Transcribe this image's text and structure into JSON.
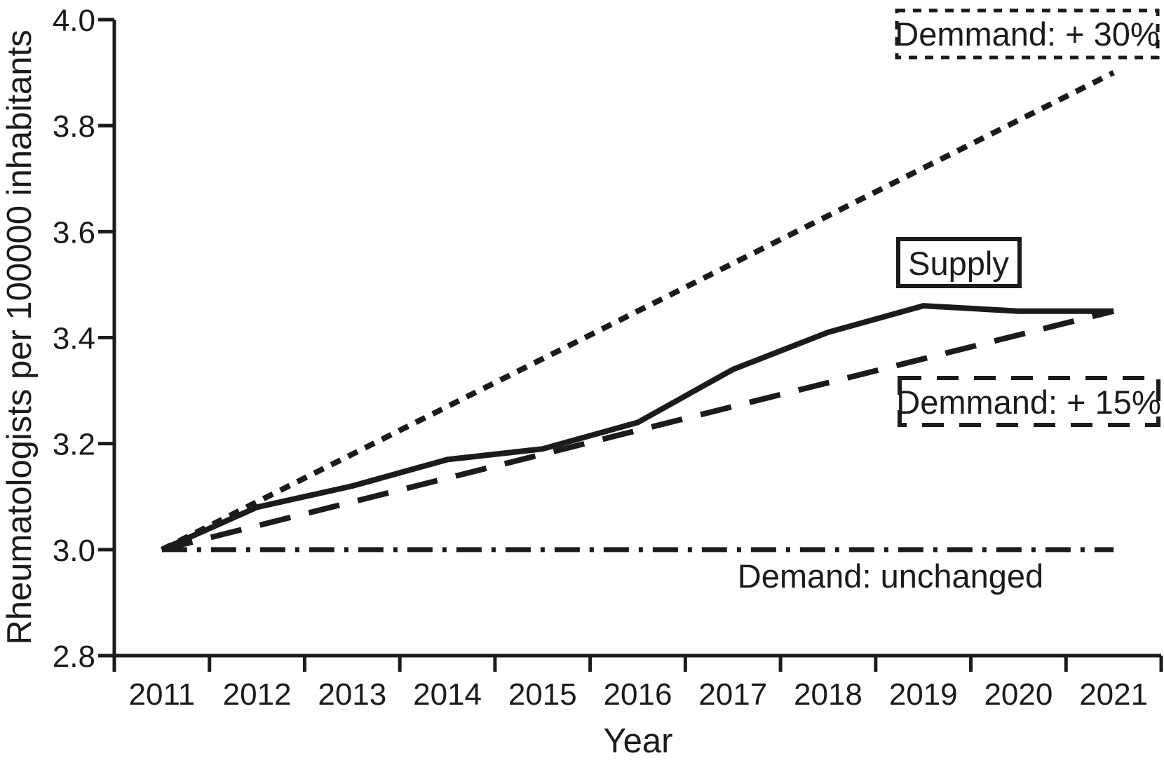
{
  "figure": {
    "background": "#ffffff",
    "ink_color": "#1b1b1b"
  },
  "chart_data": {
    "type": "line",
    "title": "",
    "xlabel": "Year",
    "ylabel": "Rheumatologists per 100000 inhabitants",
    "x": [
      2011,
      2012,
      2013,
      2014,
      2015,
      2016,
      2017,
      2018,
      2019,
      2020,
      2021
    ],
    "xtick_labels": [
      "2011",
      "2012",
      "2013",
      "2014",
      "2015",
      "2016",
      "2017",
      "2018",
      "2019",
      "2020",
      "2021"
    ],
    "ylim": [
      2.8,
      4.0
    ],
    "yticks": [
      2.8,
      3.0,
      3.2,
      3.4,
      3.6,
      3.8,
      4.0
    ],
    "ytick_labels": [
      "2.8",
      "3.0",
      "3.2",
      "3.4",
      "3.6",
      "3.8",
      "4.0"
    ],
    "grid": false,
    "legend_position": "inline-annotations",
    "series": [
      {
        "name": "Demmand: + 30%",
        "style": "dotted",
        "values": [
          3.0,
          3.09,
          3.18,
          3.27,
          3.36,
          3.45,
          3.54,
          3.63,
          3.72,
          3.81,
          3.9
        ]
      },
      {
        "name": "Supply",
        "style": "solid",
        "values": [
          3.0,
          3.08,
          3.12,
          3.17,
          3.19,
          3.24,
          3.34,
          3.41,
          3.46,
          3.45,
          3.45
        ]
      },
      {
        "name": "Demmand: + 15%",
        "style": "long-dash",
        "values": [
          3.0,
          3.045,
          3.09,
          3.135,
          3.18,
          3.225,
          3.27,
          3.315,
          3.36,
          3.405,
          3.45
        ]
      },
      {
        "name": "Demand: unchanged",
        "style": "dash-dot",
        "values": [
          3.0,
          3.0,
          3.0,
          3.0,
          3.0,
          3.0,
          3.0,
          3.0,
          3.0,
          3.0,
          3.0
        ]
      }
    ],
    "annotations": [
      {
        "text": "Demmand: + 30%",
        "box_style": "dotted"
      },
      {
        "text": "Supply",
        "box_style": "solid"
      },
      {
        "text": "Demmand: + 15%",
        "box_style": "dashed"
      },
      {
        "text": "Demand: unchanged",
        "box_style": "none"
      }
    ]
  }
}
